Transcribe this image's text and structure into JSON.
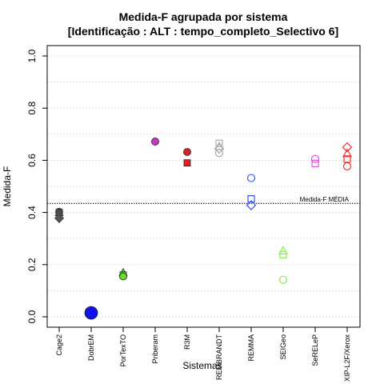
{
  "chart_data": {
    "type": "scatter",
    "title": "Medida-F agrupada por sistema",
    "subtitle": "[Identificação : ALT : tempo_completo_Selectivo 6]",
    "xlabel": "Sistemas",
    "ylabel": "Medida-F",
    "ylim": [
      0,
      1
    ],
    "yticks": [
      "0.0",
      "0.2",
      "0.4",
      "0.6",
      "0.8",
      "1.0"
    ],
    "grid": "horizontal dotted",
    "categories": [
      "Cage2",
      "DobrEM",
      "PorTexTO",
      "Priberam",
      "R3M",
      "REMBRANDT",
      "REMMA",
      "SEIGeo",
      "SeRELeP",
      "XIP-L2F/Xerox"
    ],
    "reference_line": {
      "label": "Medida-F MÉDIA",
      "value": 0.435
    },
    "points": [
      {
        "category": "Cage2",
        "shape": "circle",
        "filled": true,
        "color": "#555555",
        "y": 0.403
      },
      {
        "category": "Cage2",
        "shape": "square",
        "filled": true,
        "color": "#555555",
        "y": 0.4
      },
      {
        "category": "Cage2",
        "shape": "triangle",
        "filled": true,
        "color": "#555555",
        "y": 0.398
      },
      {
        "category": "Cage2",
        "shape": "diamond",
        "filled": true,
        "color": "#555555",
        "y": 0.378
      },
      {
        "category": "DobrEM",
        "shape": "circle",
        "filled": true,
        "color": "#1010ee",
        "y": 0.015,
        "size": "large"
      },
      {
        "category": "PorTexTO",
        "shape": "triangle",
        "filled": true,
        "color": "#66dd33",
        "y": 0.168
      },
      {
        "category": "PorTexTO",
        "shape": "square",
        "filled": true,
        "color": "#66dd33",
        "y": 0.16
      },
      {
        "category": "PorTexTO",
        "shape": "circle",
        "filled": true,
        "color": "#66dd33",
        "y": 0.155
      },
      {
        "category": "Priberam",
        "shape": "circle",
        "filled": true,
        "color": "#cc33cc",
        "y": 0.672
      },
      {
        "category": "R3M",
        "shape": "circle",
        "filled": true,
        "color": "#dd2222",
        "y": 0.632
      },
      {
        "category": "R3M",
        "shape": "square",
        "filled": true,
        "color": "#dd2222",
        "y": 0.59
      },
      {
        "category": "REMBRANDT",
        "shape": "square",
        "filled": false,
        "color": "#aaaaaa",
        "y": 0.665
      },
      {
        "category": "REMBRANDT",
        "shape": "triangle",
        "filled": false,
        "color": "#aaaaaa",
        "y": 0.652
      },
      {
        "category": "REMBRANDT",
        "shape": "diamond",
        "filled": false,
        "color": "#aaaaaa",
        "y": 0.645
      },
      {
        "category": "REMBRANDT",
        "shape": "circle",
        "filled": false,
        "color": "#aaaaaa",
        "y": 0.628
      },
      {
        "category": "REMMA",
        "shape": "circle",
        "filled": false,
        "color": "#3355ee",
        "y": 0.532
      },
      {
        "category": "REMMA",
        "shape": "square",
        "filled": false,
        "color": "#3355ee",
        "y": 0.452
      },
      {
        "category": "REMMA",
        "shape": "diamond",
        "filled": false,
        "color": "#3355ee",
        "y": 0.428
      },
      {
        "category": "SEIGeo",
        "shape": "triangle",
        "filled": false,
        "color": "#88ee55",
        "y": 0.252
      },
      {
        "category": "SEIGeo",
        "shape": "square",
        "filled": false,
        "color": "#88ee55",
        "y": 0.238
      },
      {
        "category": "SEIGeo",
        "shape": "circle",
        "filled": false,
        "color": "#88ee55",
        "y": 0.142
      },
      {
        "category": "SeRELeP",
        "shape": "circle",
        "filled": false,
        "color": "#dd55dd",
        "y": 0.605
      },
      {
        "category": "SeRELeP",
        "shape": "square",
        "filled": false,
        "color": "#dd55dd",
        "y": 0.588
      },
      {
        "category": "XIP-L2F/Xerox",
        "shape": "diamond",
        "filled": false,
        "color": "#ee3333",
        "y": 0.65
      },
      {
        "category": "XIP-L2F/Xerox",
        "shape": "triangle",
        "filled": false,
        "color": "#ee3333",
        "y": 0.625
      },
      {
        "category": "XIP-L2F/Xerox",
        "shape": "square",
        "filled": false,
        "color": "#ee3333",
        "y": 0.605
      },
      {
        "category": "XIP-L2F/Xerox",
        "shape": "circle",
        "filled": false,
        "color": "#ee3333",
        "y": 0.577
      }
    ]
  }
}
